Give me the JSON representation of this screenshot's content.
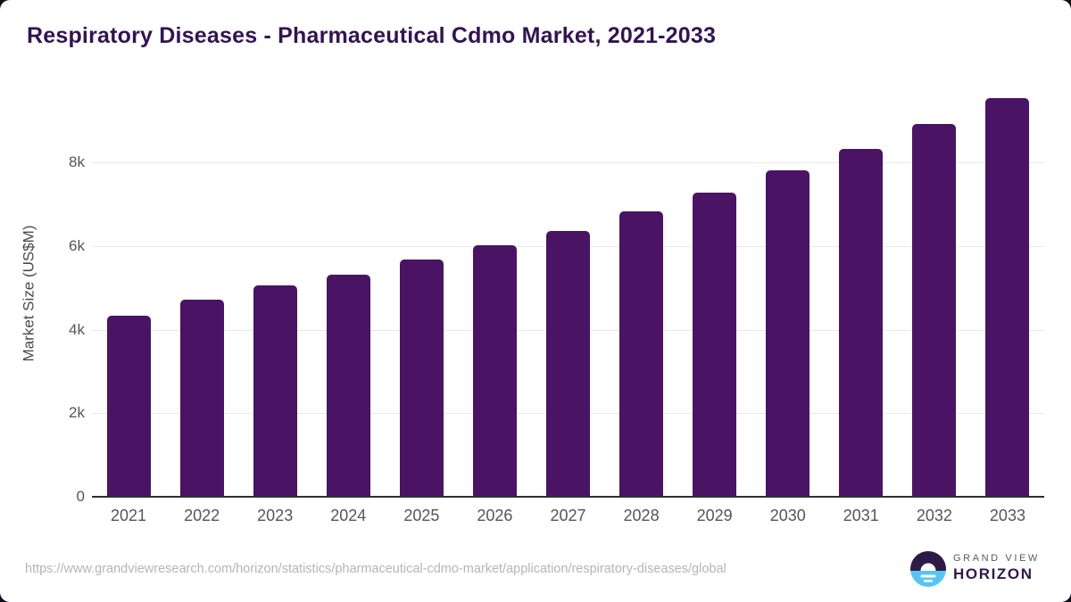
{
  "title": "Respiratory Diseases - Pharmaceutical Cdmo Market, 2021-2033",
  "footer": {
    "source_url": "https://www.grandviewresearch.com/horizon/statistics/pharmaceutical-cdmo-market/application/respiratory-diseases/global",
    "logo_top": "GRAND VIEW",
    "logo_bottom": "HORIZON"
  },
  "colors": {
    "bar": "#4a1363",
    "title": "#331352",
    "axis_text": "#555555",
    "gridline": "#e9e9e9",
    "axis_line": "#2f2f2f",
    "url_text": "#b5b5b5",
    "logo_purple": "#2e1a47",
    "logo_blue": "#58c5f1"
  },
  "chart_data": {
    "type": "bar",
    "title": "Respiratory Diseases - Pharmaceutical Cdmo Market, 2021-2033",
    "categories": [
      "2021",
      "2022",
      "2023",
      "2024",
      "2025",
      "2026",
      "2027",
      "2028",
      "2029",
      "2030",
      "2031",
      "2032",
      "2033"
    ],
    "values": [
      4310,
      4700,
      5030,
      5290,
      5660,
      6000,
      6330,
      6800,
      7250,
      7780,
      8300,
      8890,
      9520
    ],
    "xlabel": "",
    "ylabel": "Market Size (US$M)",
    "ylim": [
      0,
      9750
    ],
    "yticks": [
      {
        "value": 0,
        "label": "0"
      },
      {
        "value": 2000,
        "label": "2k"
      },
      {
        "value": 4000,
        "label": "4k"
      },
      {
        "value": 6000,
        "label": "6k"
      },
      {
        "value": 8000,
        "label": "8k"
      }
    ],
    "grid": "horizontal",
    "legend": "none",
    "bar_color": "#4a1363"
  }
}
